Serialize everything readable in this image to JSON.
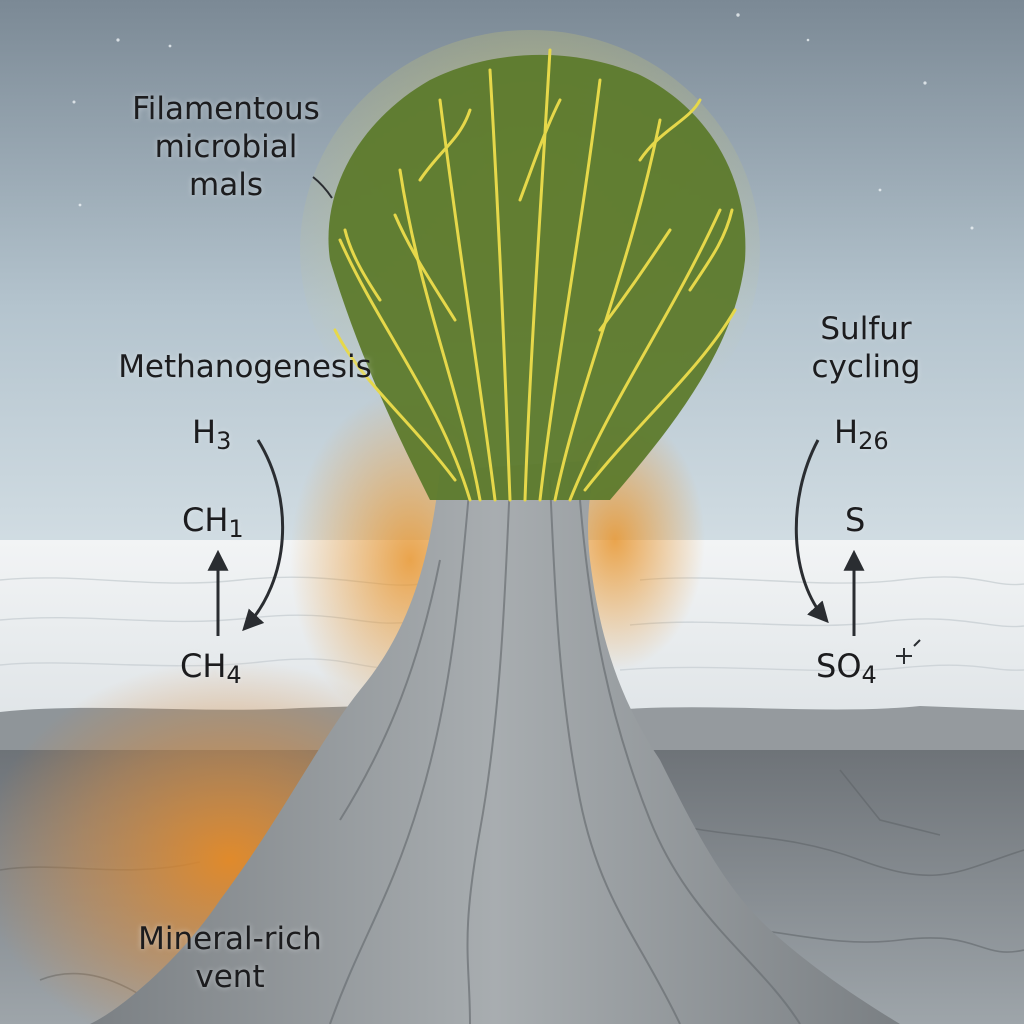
{
  "labels": {
    "mats": {
      "line1": "Filamentous",
      "line2": "microbial",
      "line3": "mals"
    },
    "methanogenesis": "Methanogenesis",
    "sulfur": {
      "line1": "Sulfur",
      "line2": "cycling"
    },
    "vent": {
      "line1": "Mineral-rich",
      "line2": "vent"
    }
  },
  "methane_cycle": {
    "top": {
      "base": "H",
      "sub": "3"
    },
    "middle": {
      "base": "CH",
      "sub": "1"
    },
    "bottom": {
      "base": "CH",
      "sub": "4"
    }
  },
  "sulfur_cycle": {
    "top": {
      "base": "H",
      "sub": "26"
    },
    "middle": {
      "base": "S",
      "sub": ""
    },
    "bottom": {
      "base": "SO",
      "sub": "4"
    }
  },
  "colors": {
    "sky_top": "#7e8c98",
    "sky_bottom": "#c9d6de",
    "ice": "#e9edef",
    "rock": "#8d9296",
    "vent_glow": "#e08a2c",
    "filament_green": "#5f7a2a",
    "filament_yellow": "#e6d84a",
    "arrow": "#2a2d31"
  }
}
